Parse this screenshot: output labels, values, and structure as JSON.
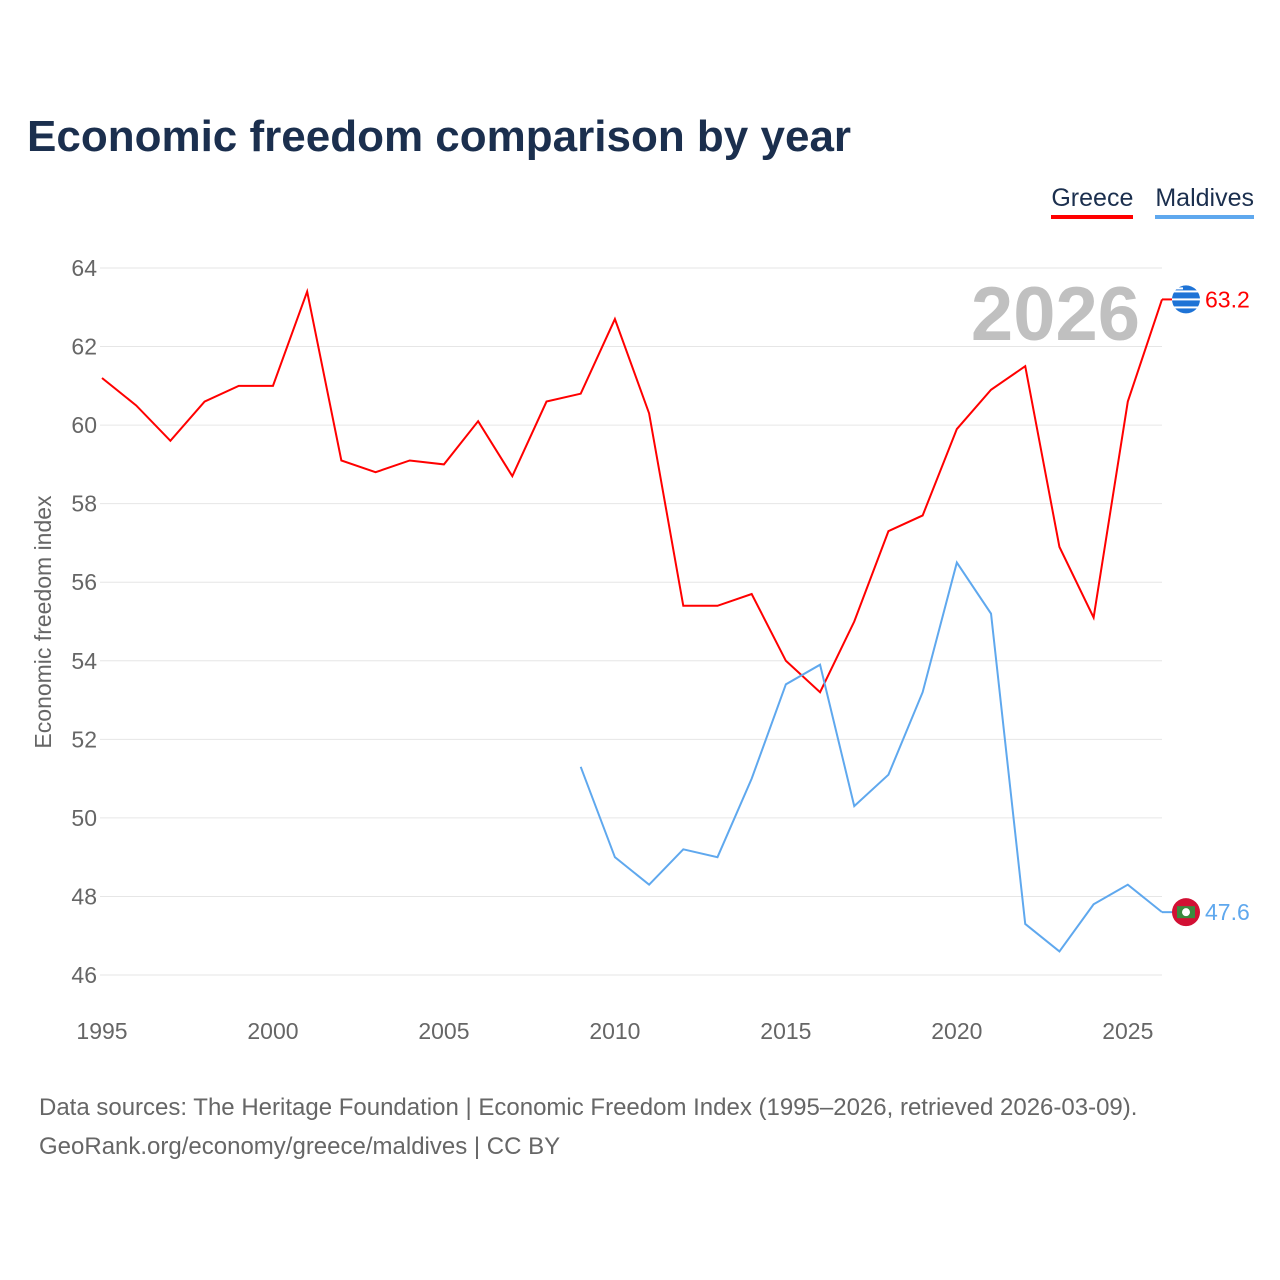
{
  "chart_data": {
    "type": "line",
    "title": "Economic freedom comparison by year",
    "ylabel": "Economic freedom index",
    "xlabel": "",
    "ylim": [
      46,
      64
    ],
    "xlim": [
      1995,
      2026
    ],
    "yticks": [
      46,
      48,
      50,
      52,
      54,
      56,
      58,
      60,
      62,
      64
    ],
    "xticks": [
      1995,
      2000,
      2005,
      2010,
      2015,
      2020,
      2025
    ],
    "grid": true,
    "legend_position": "top-right",
    "year_label": "2026",
    "series": [
      {
        "name": "Greece",
        "color": "#ff0000",
        "end_label": "63.2",
        "x": [
          1995,
          1996,
          1997,
          1998,
          1999,
          2000,
          2001,
          2002,
          2003,
          2004,
          2005,
          2006,
          2007,
          2008,
          2009,
          2010,
          2011,
          2012,
          2013,
          2014,
          2015,
          2016,
          2017,
          2018,
          2019,
          2020,
          2021,
          2022,
          2023,
          2024,
          2025,
          2026
        ],
        "values": [
          61.2,
          60.5,
          59.6,
          60.6,
          61.0,
          61.0,
          63.4,
          59.1,
          58.8,
          59.1,
          59.0,
          60.1,
          58.7,
          60.6,
          60.8,
          62.7,
          60.3,
          55.4,
          55.4,
          55.7,
          54.0,
          53.2,
          55.0,
          57.3,
          57.7,
          59.9,
          60.9,
          61.5,
          56.9,
          55.1,
          60.6,
          63.2
        ]
      },
      {
        "name": "Maldives",
        "color": "#5fa8ee",
        "end_label": "47.6",
        "x": [
          2009,
          2010,
          2011,
          2012,
          2013,
          2014,
          2015,
          2016,
          2017,
          2018,
          2019,
          2020,
          2021,
          2022,
          2023,
          2024,
          2025,
          2026
        ],
        "values": [
          51.3,
          49.0,
          48.3,
          49.2,
          49.0,
          51.0,
          53.4,
          53.9,
          50.3,
          51.1,
          53.2,
          56.5,
          55.2,
          47.3,
          46.6,
          47.8,
          48.3,
          47.6
        ]
      }
    ]
  },
  "source": {
    "line1": "Data sources: The Heritage Foundation | Economic Freedom Index (1995–2026, retrieved 2026-03-09).",
    "line2": "GeoRank.org/economy/greece/maldives | CC BY"
  }
}
